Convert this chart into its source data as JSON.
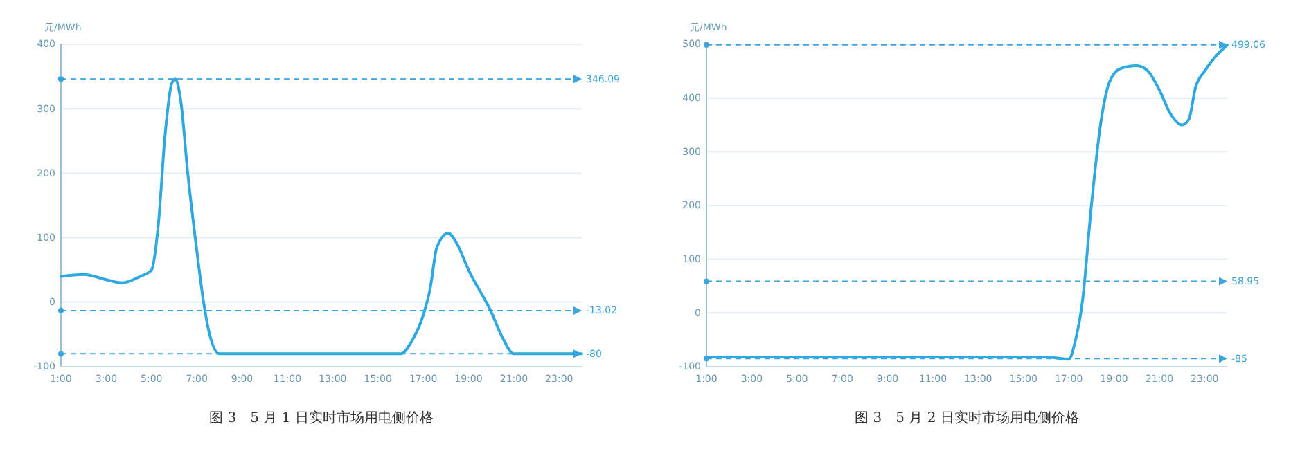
{
  "chart_data": [
    {
      "type": "line",
      "title": "图 3　5 月 1 日实时市场用电侧价格",
      "ylabel": "元/MWh",
      "x": [
        1,
        2,
        3,
        3.7,
        4.5,
        5,
        5.3,
        5.6,
        5.9,
        6.05,
        6.3,
        6.6,
        7,
        7.3,
        7.5,
        8,
        16,
        16.5,
        17,
        17.3,
        17.6,
        18.1,
        18.5,
        19,
        20,
        20.5,
        21,
        24
      ],
      "series": [
        {
          "color": "#2ea8e0",
          "values": [
            40,
            43,
            35,
            30,
            40,
            50,
            120,
            260,
            340,
            346,
            310,
            200,
            80,
            0,
            -40,
            -80,
            -80,
            -60,
            -20,
            20,
            85,
            107,
            90,
            50,
            -15,
            -55,
            -80,
            -80
          ]
        }
      ],
      "xlim": [
        1,
        24
      ],
      "xticks": [
        {
          "value": 1,
          "label": "1:00"
        },
        {
          "value": 3,
          "label": "3:00"
        },
        {
          "value": 5,
          "label": "5:00"
        },
        {
          "value": 7,
          "label": "7:00"
        },
        {
          "value": 9,
          "label": "9:00"
        },
        {
          "value": 11,
          "label": "11:00"
        },
        {
          "value": 13,
          "label": "13:00"
        },
        {
          "value": 15,
          "label": "15:00"
        },
        {
          "value": 17,
          "label": "17:00"
        },
        {
          "value": 19,
          "label": "19:00"
        },
        {
          "value": 21,
          "label": "21:00"
        },
        {
          "value": 23,
          "label": "23:00"
        }
      ],
      "ylim": [
        -100,
        400
      ],
      "yticks": [
        -100,
        0,
        100,
        200,
        300,
        400
      ],
      "grid": "y",
      "marker": "none",
      "line_style": "solid",
      "ref_lines": [
        {
          "axis": "y",
          "value": 346.09,
          "label": "346.09",
          "color": "#3aa5dc",
          "line_style": "dashed"
        },
        {
          "axis": "y",
          "value": -13.02,
          "label": "-13.02",
          "color": "#3aa5dc",
          "line_style": "dashed"
        },
        {
          "axis": "y",
          "value": -80,
          "label": "-80",
          "color": "#3aa5dc",
          "line_style": "dashed"
        }
      ]
    },
    {
      "type": "line",
      "title": "图 3　5 月 2 日实时市场用电侧价格",
      "ylabel": "元/MWh",
      "x": [
        1,
        16,
        17,
        17.3,
        17.6,
        18,
        18.4,
        18.8,
        19.3,
        20,
        20.5,
        21,
        21.5,
        22,
        22.3,
        22.6,
        23,
        24
      ],
      "series": [
        {
          "color": "#2ea8e0",
          "values": [
            -82,
            -82,
            -86,
            -50,
            20,
            200,
            350,
            430,
            455,
            460,
            450,
            415,
            370,
            350,
            360,
            420,
            450,
            499
          ]
        }
      ],
      "xlim": [
        1,
        24
      ],
      "xticks": [
        {
          "value": 1,
          "label": "1:00"
        },
        {
          "value": 3,
          "label": "3:00"
        },
        {
          "value": 5,
          "label": "5:00"
        },
        {
          "value": 7,
          "label": "7:00"
        },
        {
          "value": 9,
          "label": "9:00"
        },
        {
          "value": 11,
          "label": "11:00"
        },
        {
          "value": 13,
          "label": "13:00"
        },
        {
          "value": 15,
          "label": "15:00"
        },
        {
          "value": 17,
          "label": "17:00"
        },
        {
          "value": 19,
          "label": "19:00"
        },
        {
          "value": 21,
          "label": "21:00"
        },
        {
          "value": 23,
          "label": "23:00"
        }
      ],
      "ylim": [
        -100,
        500
      ],
      "yticks": [
        -100,
        0,
        100,
        200,
        300,
        400,
        500
      ],
      "grid": "y",
      "marker": "none",
      "line_style": "solid",
      "ref_lines": [
        {
          "axis": "y",
          "value": 499.06,
          "label": "499.06",
          "color": "#3aa5dc",
          "line_style": "dashed"
        },
        {
          "axis": "y",
          "value": 58.95,
          "label": "58.95",
          "color": "#3aa5dc",
          "line_style": "dashed"
        },
        {
          "axis": "y",
          "value": -85,
          "label": "-85",
          "color": "#3aa5dc",
          "line_style": "dashed"
        }
      ]
    }
  ]
}
